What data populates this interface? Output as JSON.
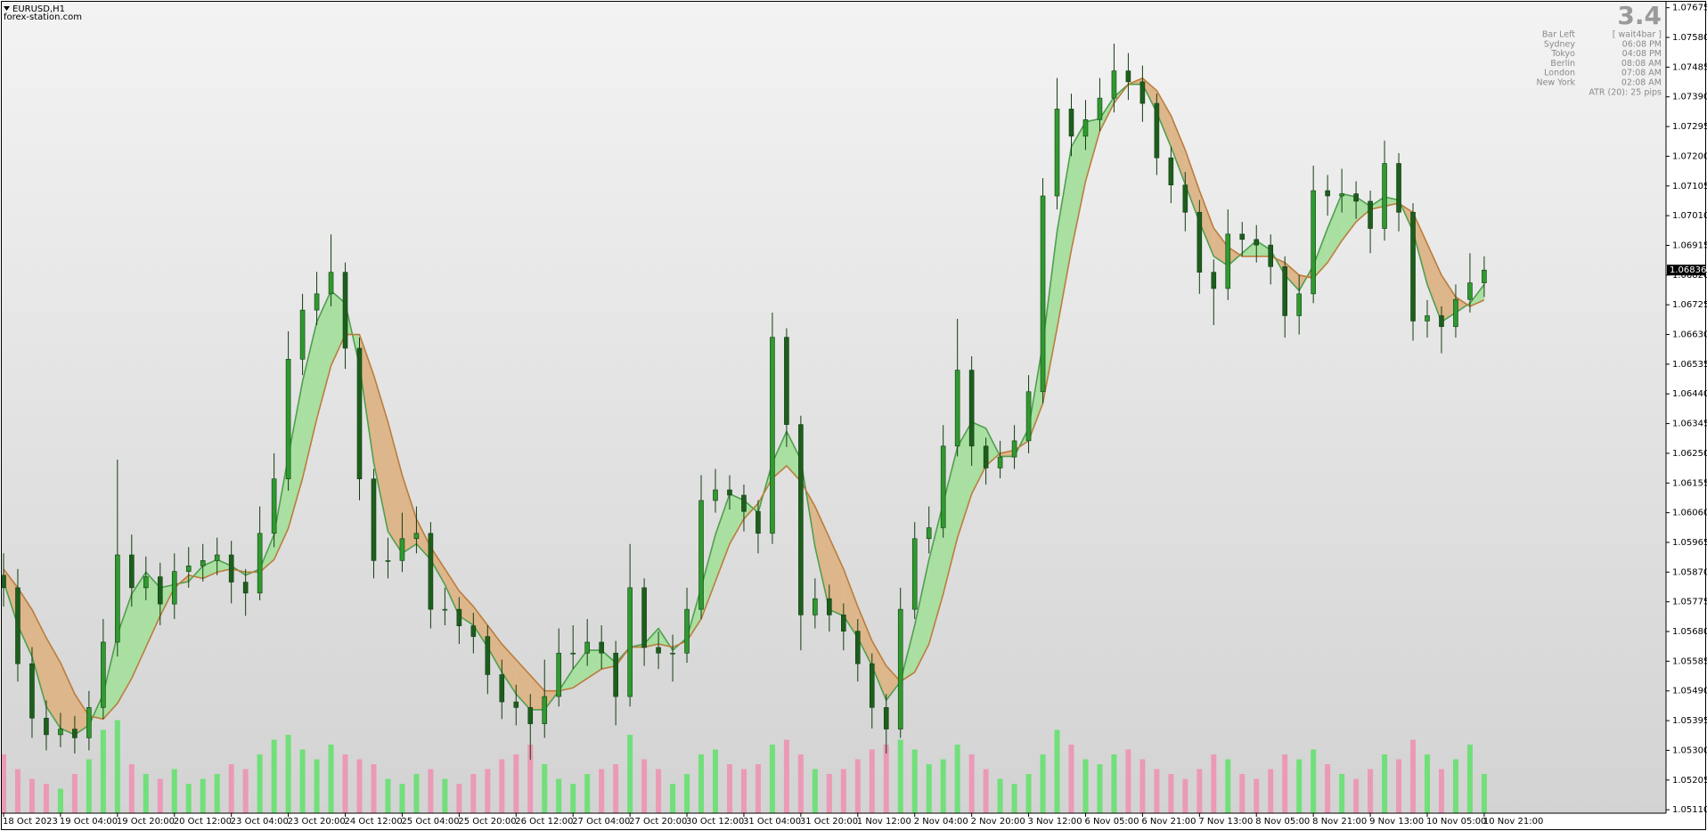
{
  "chart_data": {
    "type": "candlestick",
    "title": "EURUSD,H1",
    "watermark": "forex-station.com",
    "categories": [
      "18 Oct 2023",
      null,
      null,
      null,
      "19 Oct 04:00",
      null,
      null,
      null,
      "19 Oct 20:00",
      null,
      null,
      null,
      "20 Oct 12:00",
      null,
      null,
      null,
      "23 Oct 04:00",
      null,
      null,
      null,
      "23 Oct 20:00",
      null,
      null,
      null,
      "24 Oct 12:00",
      null,
      null,
      null,
      "25 Oct 04:00",
      null,
      null,
      null,
      "25 Oct 20:00",
      null,
      null,
      null,
      "26 Oct 12:00",
      null,
      null,
      null,
      "27 Oct 04:00",
      null,
      null,
      null,
      "27 Oct 20:00",
      null,
      null,
      null,
      "30 Oct 12:00",
      null,
      null,
      null,
      "31 Oct 04:00",
      null,
      null,
      null,
      "31 Oct 20:00",
      null,
      null,
      null,
      "1 Nov 12:00",
      null,
      null,
      null,
      "2 Nov 04:00",
      null,
      null,
      null,
      "2 Nov 20:00",
      null,
      null,
      null,
      "3 Nov 12:00",
      null,
      null,
      null,
      "6 Nov 05:00",
      null,
      null,
      null,
      "6 Nov 21:00",
      null,
      null,
      null,
      "7 Nov 13:00",
      null,
      null,
      null,
      "8 Nov 05:00",
      null,
      null,
      null,
      "8 Nov 21:00",
      null,
      null,
      null,
      "9 Nov 13:00",
      null,
      null,
      null,
      "10 Nov 05:00",
      null,
      null,
      null,
      "10 Nov 21:00"
    ],
    "open": [
      1.0586,
      1.0582,
      1.05577,
      1.05403,
      1.0535,
      1.05368,
      1.0534,
      1.05437,
      1.05646,
      1.05925,
      1.0582,
      1.05855,
      1.05768,
      1.05872,
      1.0589,
      1.05907,
      1.05925,
      1.05838,
      1.05803,
      1.05994,
      1.06168,
      1.06551,
      1.06708,
      1.0676,
      1.06829,
      1.06586,
      1.06168,
      1.05907,
      1.05907,
      1.05977,
      1.05994,
      1.05751,
      1.05751,
      1.05698,
      1.05664,
      1.05542,
      1.05455,
      1.05437,
      1.05385,
      1.05472,
      1.05611,
      1.05611,
      1.05646,
      1.05611,
      1.05472,
      1.0582,
      1.05629,
      1.05611,
      1.05611,
      1.05751,
      1.06099,
      1.06133,
      1.06116,
      1.06064,
      1.05994,
      1.06621,
      1.06342,
      1.05733,
      1.05785,
      1.05733,
      1.05681,
      1.05577,
      1.05437,
      1.05368,
      1.05751,
      1.05977,
      1.06012,
      1.06273,
      1.06516,
      1.06273,
      1.06203,
      1.06238,
      1.0629,
      1.06447,
      1.07073,
      1.07351,
      1.07264,
      1.07317,
      1.07386,
      1.07473,
      1.07438,
      1.07369,
      1.07195,
      1.07108,
      1.07021,
      1.06829,
      1.06777,
      1.06951,
      1.06934,
      1.06916,
      1.06847,
      1.0669,
      1.0676,
      1.0709,
      1.07073,
      1.0708,
      1.07056,
      1.06969,
      1.07177,
      1.07021,
      1.06673,
      1.0669,
      1.06655,
      1.06742,
      1.06795
    ],
    "high": [
      1.0593,
      1.0588,
      1.0563,
      1.0546,
      1.0542,
      1.0541,
      1.0549,
      1.0572,
      1.0623,
      1.0599,
      1.0592,
      1.059,
      1.0593,
      1.0595,
      1.0596,
      1.0598,
      1.0597,
      1.0588,
      1.0608,
      1.0625,
      1.0664,
      1.0676,
      1.0683,
      1.0695,
      1.0686,
      1.0662,
      1.062,
      1.0598,
      1.0606,
      1.0608,
      1.0603,
      1.0582,
      1.0579,
      1.0574,
      1.057,
      1.0559,
      1.0551,
      1.0548,
      1.0559,
      1.0569,
      1.057,
      1.0572,
      1.057,
      1.0565,
      1.0596,
      1.0585,
      1.0568,
      1.0567,
      1.0582,
      1.0618,
      1.062,
      1.0618,
      1.0615,
      1.061,
      1.067,
      1.0665,
      1.0637,
      1.0585,
      1.0583,
      1.0577,
      1.0572,
      1.0561,
      1.0548,
      1.0582,
      1.0603,
      1.0608,
      1.0634,
      1.0668,
      1.0656,
      1.063,
      1.0629,
      1.0634,
      1.065,
      1.0713,
      1.0745,
      1.074,
      1.0738,
      1.0745,
      1.0756,
      1.0753,
      1.0749,
      1.074,
      1.0723,
      1.0715,
      1.0706,
      1.0687,
      1.0703,
      1.0699,
      1.0698,
      1.0695,
      1.0688,
      1.0682,
      1.0717,
      1.0714,
      1.0716,
      1.0712,
      1.0709,
      1.0725,
      1.0721,
      1.0705,
      1.0674,
      1.0672,
      1.0679,
      1.0689,
      1.0688
    ],
    "low": [
      1.0576,
      1.0552,
      1.0534,
      1.053,
      1.0531,
      1.0529,
      1.053,
      1.054,
      1.056,
      1.0576,
      1.0578,
      1.057,
      1.0572,
      1.0582,
      1.0584,
      1.0586,
      1.0577,
      1.0573,
      1.0578,
      1.0595,
      1.0613,
      1.065,
      1.0666,
      1.0672,
      1.0652,
      1.061,
      1.0585,
      1.0585,
      1.0587,
      1.0593,
      1.0569,
      1.057,
      1.0564,
      1.0561,
      1.0548,
      1.054,
      1.0538,
      1.0527,
      1.0534,
      1.0544,
      1.0556,
      1.0557,
      1.0556,
      1.0538,
      1.0544,
      1.0557,
      1.0556,
      1.0552,
      1.0558,
      1.0572,
      1.0606,
      1.0607,
      1.06,
      1.0593,
      1.0596,
      1.0627,
      1.0562,
      1.0569,
      1.0568,
      1.0562,
      1.0552,
      1.0537,
      1.0529,
      1.0534,
      1.0572,
      1.0593,
      1.0598,
      1.0624,
      1.0621,
      1.0615,
      1.0617,
      1.062,
      1.0625,
      1.0641,
      1.0703,
      1.072,
      1.0722,
      1.0728,
      1.0734,
      1.0738,
      1.0731,
      1.0714,
      1.0705,
      1.0696,
      1.0676,
      1.0666,
      1.0674,
      1.0688,
      1.0686,
      1.0679,
      1.0662,
      1.0663,
      1.0673,
      1.0701,
      1.0702,
      1.07,
      1.0689,
      1.0693,
      1.0696,
      1.0661,
      1.0662,
      1.0657,
      1.0662,
      1.067,
      1.0675
    ],
    "close": [
      1.0582,
      1.05577,
      1.05403,
      1.0535,
      1.05368,
      1.0534,
      1.05437,
      1.05646,
      1.05925,
      1.0582,
      1.05855,
      1.05768,
      1.05872,
      1.0589,
      1.05907,
      1.05925,
      1.05838,
      1.05803,
      1.05994,
      1.06168,
      1.06551,
      1.06708,
      1.0676,
      1.06829,
      1.06586,
      1.06168,
      1.05907,
      1.05907,
      1.05977,
      1.05994,
      1.05751,
      1.05751,
      1.05698,
      1.05664,
      1.05542,
      1.05455,
      1.05437,
      1.05385,
      1.05472,
      1.05611,
      1.05611,
      1.05646,
      1.05611,
      1.05472,
      1.0582,
      1.05629,
      1.05611,
      1.05611,
      1.05751,
      1.06099,
      1.06133,
      1.06116,
      1.06064,
      1.05994,
      1.06621,
      1.06342,
      1.05733,
      1.05785,
      1.05733,
      1.05681,
      1.05577,
      1.05437,
      1.05368,
      1.05751,
      1.05977,
      1.06012,
      1.06273,
      1.06516,
      1.06273,
      1.06203,
      1.06238,
      1.0629,
      1.06447,
      1.07073,
      1.07351,
      1.07264,
      1.07317,
      1.07386,
      1.07473,
      1.07438,
      1.07369,
      1.07195,
      1.07108,
      1.07021,
      1.06829,
      1.06777,
      1.06951,
      1.06934,
      1.06916,
      1.06847,
      1.0669,
      1.0676,
      1.0709,
      1.07073,
      1.0708,
      1.07056,
      1.06969,
      1.07177,
      1.07021,
      1.06673,
      1.0669,
      1.06655,
      1.06742,
      1.06795,
      1.06836
    ],
    "up_color": "#2f9a2f",
    "down_color": "#1d5e1d",
    "overlays": [
      {
        "color": "#4f9f4f",
        "values": [
          1.0584,
          1.057,
          1.056,
          1.0544,
          1.0537,
          1.0535,
          1.0538,
          1.0548,
          1.0567,
          1.058,
          1.0587,
          1.0582,
          1.0583,
          1.0584,
          1.0589,
          1.0591,
          1.0589,
          1.0586,
          1.0588,
          1.0599,
          1.0624,
          1.0648,
          1.0667,
          1.0677,
          1.0673,
          1.0653,
          1.0622,
          1.06,
          1.0593,
          1.0596,
          1.0591,
          1.0583,
          1.0573,
          1.057,
          1.0563,
          1.0555,
          1.0548,
          1.0543,
          1.0543,
          1.0549,
          1.0556,
          1.0562,
          1.0562,
          1.0558,
          1.0563,
          1.0564,
          1.0569,
          1.0562,
          1.0566,
          1.0582,
          1.0599,
          1.0612,
          1.061,
          1.0606,
          1.0622,
          1.0632,
          1.0623,
          1.0595,
          1.0575,
          1.0573,
          1.0566,
          1.0557,
          1.0546,
          1.0552,
          1.057,
          1.0591,
          1.0609,
          1.0627,
          1.0635,
          1.0633,
          1.0624,
          1.0624,
          1.0633,
          1.066,
          1.0696,
          1.0723,
          1.0731,
          1.0732,
          1.0739,
          1.0743,
          1.0743,
          1.0734,
          1.0723,
          1.0711,
          1.0699,
          1.0688,
          1.0685,
          1.0689,
          1.0693,
          1.069,
          1.0682,
          1.0677,
          1.0685,
          1.0697,
          1.0708,
          1.0707,
          1.0704,
          1.0707,
          1.0706,
          1.0696,
          1.0679,
          1.0667,
          1.067,
          1.0673,
          1.0679
        ]
      },
      {
        "color": "#bb7d3c",
        "values": [
          1.0588,
          1.0582,
          1.0575,
          1.0566,
          1.0558,
          1.0548,
          1.0541,
          1.054,
          1.0545,
          1.0553,
          1.0563,
          1.0573,
          1.0582,
          1.0586,
          1.0585,
          1.0587,
          1.0588,
          1.0587,
          1.0587,
          1.0591,
          1.0601,
          1.0617,
          1.0636,
          1.0653,
          1.0663,
          1.0663,
          1.065,
          1.0635,
          1.0618,
          1.0604,
          1.0595,
          1.0588,
          1.0581,
          1.0576,
          1.057,
          1.0564,
          1.0559,
          1.0554,
          1.0549,
          1.0549,
          1.055,
          1.0553,
          1.0556,
          1.0557,
          1.0563,
          1.0563,
          1.0564,
          1.0563,
          1.0565,
          1.0572,
          1.0584,
          1.0596,
          1.0604,
          1.0609,
          1.0617,
          1.0621,
          1.0616,
          1.0608,
          1.0598,
          1.0588,
          1.0576,
          1.0565,
          1.0557,
          1.0552,
          1.0555,
          1.0564,
          1.058,
          1.0598,
          1.0612,
          1.0621,
          1.0625,
          1.0626,
          1.0629,
          1.0641,
          1.0665,
          1.069,
          1.0712,
          1.0728,
          1.0737,
          1.0743,
          1.0745,
          1.0741,
          1.0733,
          1.0722,
          1.0709,
          1.0697,
          1.0691,
          1.0688,
          1.0688,
          1.0688,
          1.0686,
          1.0682,
          1.0681,
          1.0686,
          1.0693,
          1.0699,
          1.0703,
          1.0704,
          1.0705,
          1.0702,
          1.0692,
          1.0682,
          1.0675,
          1.0672,
          1.0674
        ]
      }
    ],
    "band_colors": [
      "#a9dfa1",
      "#ddb68b"
    ],
    "volume": {
      "up_color": "#5fe06a",
      "down_color": "#ee8fb0",
      "lim": [
        0,
        100
      ],
      "values": [
        60,
        45,
        35,
        30,
        25,
        40,
        55,
        85,
        95,
        50,
        40,
        35,
        45,
        30,
        35,
        40,
        50,
        45,
        60,
        75,
        80,
        65,
        55,
        70,
        60,
        55,
        50,
        35,
        30,
        40,
        45,
        35,
        30,
        40,
        45,
        55,
        60,
        70,
        50,
        35,
        30,
        40,
        45,
        50,
        80,
        55,
        45,
        30,
        40,
        60,
        65,
        50,
        45,
        50,
        70,
        75,
        60,
        45,
        40,
        45,
        55,
        65,
        70,
        75,
        65,
        50,
        55,
        70,
        60,
        45,
        35,
        30,
        40,
        60,
        85,
        70,
        55,
        50,
        60,
        65,
        55,
        45,
        40,
        35,
        45,
        60,
        55,
        40,
        35,
        45,
        60,
        55,
        65,
        50,
        40,
        35,
        45,
        60,
        55,
        75,
        60,
        45,
        55,
        70,
        40
      ]
    },
    "ylim": [
      1.05099,
      1.07694
    ],
    "yticks": [
      1.07675,
      {
        "value": 1.0758,
        "label": "1.07580"
      },
      1.07485,
      {
        "value": 1.0739,
        "label": "1.07390"
      },
      1.07295,
      {
        "value": 1.072,
        "label": "1.07200"
      },
      1.07105,
      {
        "value": 1.0701,
        "label": "1.07010"
      },
      1.06915,
      {
        "value": 1.0682,
        "label": "1.06820"
      },
      1.06725,
      {
        "value": 1.0663,
        "label": "1.06630"
      },
      1.06535,
      {
        "value": 1.0644,
        "label": "1.06440"
      },
      1.06345,
      {
        "value": 1.0625,
        "label": "1.06250"
      },
      1.06155,
      {
        "value": 1.0606,
        "label": "1.06060"
      },
      1.05965,
      {
        "value": 1.0587,
        "label": "1.05870"
      },
      1.05775,
      {
        "value": 1.0568,
        "label": "1.05680"
      },
      1.05585,
      {
        "value": 1.0549,
        "label": "1.05490"
      },
      1.05395,
      {
        "value": 1.053,
        "label": "1.05300"
      },
      1.05205,
      {
        "value": 1.0511,
        "label": "1.05110"
      }
    ],
    "info_panel": {
      "value": 3.4,
      "rows": [
        [
          "Bar Left",
          "[ wait4bar ]"
        ],
        [
          "Sydney",
          "06:08 PM"
        ],
        [
          "Tokyo",
          "04:08 PM"
        ],
        [
          "Berlin",
          "08:08 AM"
        ],
        [
          "London",
          "07:08 AM"
        ],
        [
          "New York",
          "02:08 AM"
        ]
      ],
      "atr": "ATR (20): 25 pips"
    }
  }
}
